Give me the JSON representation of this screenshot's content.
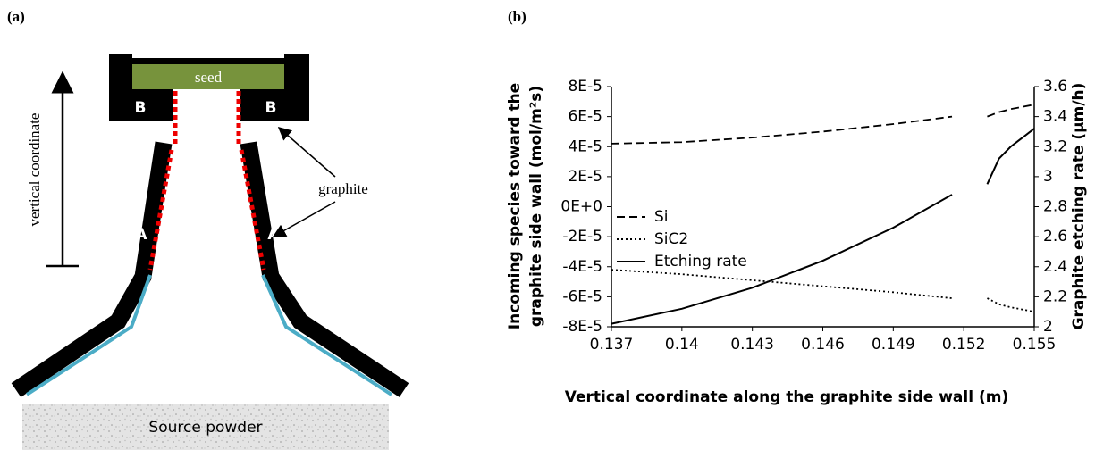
{
  "diagram": {
    "label": "(a)",
    "seed": "seed",
    "block_labels": [
      "B",
      "B"
    ],
    "axis_label": "vertical coordinate",
    "graphite": "graphite",
    "wall_labels": [
      "A",
      "A"
    ],
    "source": "Source powder"
  },
  "chart_data": {
    "type": "line",
    "panel_label": "(b)",
    "xlabel": "Vertical coordinate along the graphite side wall (m)",
    "ylabel": [
      "Incoming species toward the",
      "graphite side wall (mol/m²s)"
    ],
    "y2label": "Graphite etching rate (µm/h)",
    "x": [
      0.137,
      0.14,
      0.143,
      0.146,
      0.149,
      0.1515,
      0.152,
      0.153,
      0.1535,
      0.154,
      0.155
    ],
    "series": [
      {
        "name": "Si",
        "color": "#000000",
        "dash": "dashed",
        "values": [
          4.2e-05,
          4.3e-05,
          4.6e-05,
          5e-05,
          5.5e-05,
          6e-05,
          null,
          6e-05,
          6.3e-05,
          6.5e-05,
          6.8e-05
        ]
      },
      {
        "name": "SiC2",
        "color": "#000000",
        "dash": "dotted",
        "values": [
          -4.2e-05,
          -4.5e-05,
          -4.9e-05,
          -5.3e-05,
          -5.7e-05,
          -6.1e-05,
          null,
          -6.1e-05,
          -6.5e-05,
          -6.7e-05,
          -7e-05
        ]
      },
      {
        "name": "Etching rate",
        "color": "#000000",
        "dash": "solid",
        "axis": "y2",
        "values": [
          2.02,
          2.12,
          2.26,
          2.44,
          2.66,
          2.88,
          null,
          2.95,
          3.12,
          3.2,
          3.32
        ]
      }
    ],
    "xlim": [
      0.137,
      0.155
    ],
    "xticks": [
      0.137,
      0.14,
      0.143,
      0.146,
      0.149,
      0.152,
      0.155
    ],
    "ylim": [
      -8e-05,
      8e-05
    ],
    "yticks": [
      {
        "value": -8e-05,
        "label": "-8E-5"
      },
      {
        "value": -6e-05,
        "label": "-6E-5"
      },
      {
        "value": -4e-05,
        "label": "-4E-5"
      },
      {
        "value": -2e-05,
        "label": "-2E-5"
      },
      {
        "value": 0,
        "label": "0E+0"
      },
      {
        "value": 2e-05,
        "label": "2E-5"
      },
      {
        "value": 4e-05,
        "label": "4E-5"
      },
      {
        "value": 6e-05,
        "label": "6E-5"
      },
      {
        "value": 8e-05,
        "label": "8E-5"
      }
    ],
    "y2lim": [
      2,
      3.6
    ],
    "y2ticks": [
      2,
      2.2,
      2.4,
      2.6,
      2.8,
      3,
      3.2,
      3.4,
      3.6
    ],
    "grid": false,
    "legend": "left"
  }
}
